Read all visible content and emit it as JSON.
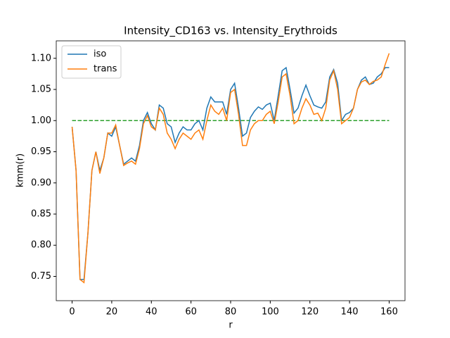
{
  "chart_data": {
    "type": "line",
    "title": "Intensity_CD163 vs. Intensity_Erythroids",
    "xlabel": "r",
    "ylabel": "kmm(r)",
    "x": [
      0,
      2,
      4,
      6,
      8,
      10,
      12,
      14,
      16,
      18,
      20,
      22,
      24,
      26,
      28,
      30,
      32,
      34,
      36,
      38,
      40,
      42,
      44,
      46,
      48,
      50,
      52,
      54,
      56,
      58,
      60,
      62,
      64,
      66,
      68,
      70,
      72,
      74,
      76,
      78,
      80,
      82,
      84,
      86,
      88,
      90,
      92,
      94,
      96,
      98,
      100,
      102,
      104,
      106,
      108,
      110,
      112,
      114,
      116,
      118,
      120,
      122,
      124,
      126,
      128,
      130,
      132,
      134,
      136,
      138,
      140,
      142,
      144,
      146,
      148,
      150,
      152,
      154,
      156,
      158,
      160
    ],
    "series": [
      {
        "name": "iso",
        "color": "#1f77b4",
        "values": [
          0.99,
          0.92,
          0.745,
          0.745,
          0.82,
          0.92,
          0.95,
          0.92,
          0.94,
          0.98,
          0.975,
          0.99,
          0.96,
          0.93,
          0.935,
          0.94,
          0.935,
          0.96,
          1.0,
          1.013,
          0.995,
          0.985,
          1.025,
          1.02,
          0.995,
          0.99,
          0.965,
          0.98,
          0.99,
          0.985,
          0.985,
          0.995,
          1.0,
          0.985,
          1.02,
          1.038,
          1.03,
          1.03,
          1.03,
          1.01,
          1.05,
          1.06,
          1.02,
          0.975,
          0.98,
          1.005,
          1.015,
          1.022,
          1.018,
          1.025,
          1.028,
          1.0,
          1.04,
          1.08,
          1.085,
          1.05,
          1.012,
          1.02,
          1.04,
          1.057,
          1.04,
          1.025,
          1.022,
          1.02,
          1.03,
          1.07,
          1.082,
          1.06,
          1.0,
          1.01,
          1.013,
          1.02,
          1.05,
          1.065,
          1.07,
          1.058,
          1.06,
          1.07,
          1.075,
          1.085,
          1.085
        ]
      },
      {
        "name": "trans",
        "color": "#ff7f0e",
        "values": [
          0.99,
          0.92,
          0.745,
          0.74,
          0.82,
          0.92,
          0.95,
          0.915,
          0.94,
          0.98,
          0.98,
          0.993,
          0.96,
          0.928,
          0.932,
          0.935,
          0.93,
          0.955,
          0.995,
          1.008,
          0.99,
          0.985,
          1.02,
          1.01,
          0.98,
          0.97,
          0.955,
          0.97,
          0.98,
          0.975,
          0.97,
          0.98,
          0.985,
          0.97,
          1.0,
          1.025,
          1.015,
          1.01,
          1.02,
          1.0,
          1.045,
          1.05,
          1.01,
          0.96,
          0.96,
          0.985,
          0.995,
          1.0,
          1.0,
          1.01,
          1.015,
          0.995,
          1.03,
          1.07,
          1.075,
          1.04,
          0.995,
          1.0,
          1.02,
          1.035,
          1.025,
          1.01,
          1.012,
          1.0,
          1.02,
          1.065,
          1.08,
          1.05,
          0.995,
          1.0,
          1.005,
          1.02,
          1.05,
          1.062,
          1.065,
          1.058,
          1.063,
          1.065,
          1.07,
          1.09,
          1.108
        ]
      }
    ],
    "reference_line": {
      "y": 1,
      "x": [
        0,
        160
      ],
      "color": "#2ca02c",
      "style": "dashed"
    },
    "xlim": [
      -8,
      168
    ],
    "ylim": [
      0.711,
      1.128
    ],
    "xticks": [
      0,
      20,
      40,
      60,
      80,
      100,
      120,
      140,
      160
    ],
    "yticks": [
      0.75,
      {
        "value": 0.8,
        "label": "0.80"
      },
      0.85,
      {
        "value": 0.9,
        "label": "0.90"
      },
      0.95,
      {
        "value": 1,
        "label": "1.00"
      },
      1.05,
      {
        "value": 1.1,
        "label": "1.10"
      }
    ],
    "legend": "upper left",
    "grid": false
  }
}
